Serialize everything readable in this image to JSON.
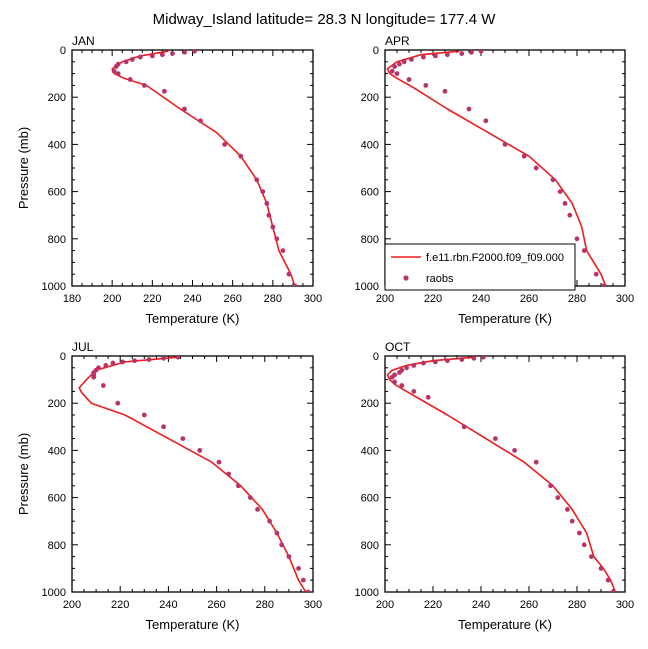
{
  "figure": {
    "title": "Midway_Island  latitude= 28.3 N longitude= 177.4 W"
  },
  "legend": {
    "model_label": "f.e11.rbn.F2000.f09_f09.000",
    "obs_label": "raobs"
  },
  "colors": {
    "model_line": "#ee1c1c",
    "obs_marker": "#b8336a",
    "axis": "#000000"
  },
  "chart_data": [
    {
      "type": "line",
      "panel": "JAN",
      "title": "JAN",
      "xlabel": "Temperature (K)",
      "ylabel": "Pressure (mb)",
      "xlim": [
        180,
        300
      ],
      "ylim": [
        1000,
        0
      ],
      "xticks": [
        180,
        200,
        220,
        240,
        260,
        280,
        300
      ],
      "yticks": [
        0,
        200,
        400,
        600,
        800,
        1000
      ],
      "legend_position": "none",
      "series": [
        {
          "name": "f.e11.rbn.F2000.f09_f09.000",
          "kind": "line",
          "x": [
            228,
            214,
            205,
            200,
            201,
            206,
            217,
            234,
            252,
            264,
            272,
            277,
            280,
            283,
            286,
            289,
            291
          ],
          "y": [
            5,
            25,
            50,
            80,
            100,
            120,
            150,
            250,
            350,
            450,
            550,
            650,
            750,
            850,
            900,
            950,
            1000
          ]
        },
        {
          "name": "raobs",
          "kind": "markers",
          "x": [
            241,
            236,
            230,
            225,
            220,
            214,
            210,
            207,
            203,
            202,
            201,
            203,
            209,
            216,
            226,
            236,
            244,
            256,
            264,
            272,
            275,
            277,
            278,
            280,
            282,
            285,
            288,
            291
          ],
          "y": [
            5,
            10,
            15,
            20,
            25,
            30,
            40,
            50,
            60,
            70,
            90,
            100,
            125,
            150,
            175,
            250,
            300,
            400,
            450,
            550,
            600,
            650,
            700,
            750,
            800,
            850,
            950,
            1000
          ]
        }
      ]
    },
    {
      "type": "line",
      "panel": "APR",
      "title": "APR",
      "xlabel": "Temperature (K)",
      "ylabel": "",
      "xlim": [
        200,
        300
      ],
      "ylim": [
        1000,
        0
      ],
      "xticks": [
        200,
        220,
        240,
        260,
        280,
        300
      ],
      "yticks": [
        0,
        200,
        400,
        600,
        800,
        1000
      ],
      "legend_position": "bottom-right",
      "series": [
        {
          "name": "f.e11.rbn.F2000.f09_f09.000",
          "kind": "line",
          "x": [
            231,
            215,
            205,
            201,
            202,
            205,
            212,
            226,
            243,
            260,
            271,
            278,
            282,
            284,
            287,
            290,
            292
          ],
          "y": [
            5,
            20,
            50,
            80,
            100,
            120,
            160,
            250,
            350,
            450,
            550,
            650,
            750,
            850,
            900,
            950,
            1000
          ]
        },
        {
          "name": "raobs",
          "kind": "markers",
          "x": [
            240,
            236,
            232,
            226,
            221,
            216,
            211,
            208,
            206,
            204,
            203,
            205,
            210,
            217,
            225,
            235,
            242,
            250,
            258,
            263,
            270,
            273,
            275,
            277,
            280,
            283,
            288,
            291
          ],
          "y": [
            5,
            10,
            15,
            20,
            25,
            30,
            40,
            50,
            60,
            70,
            90,
            100,
            125,
            150,
            175,
            250,
            300,
            400,
            450,
            500,
            550,
            600,
            650,
            700,
            800,
            850,
            950,
            1000
          ]
        }
      ]
    },
    {
      "type": "line",
      "panel": "JUL",
      "title": "JUL",
      "xlabel": "Temperature (K)",
      "ylabel": "Pressure (mb)",
      "xlim": [
        200,
        300
      ],
      "ylim": [
        1000,
        0
      ],
      "xticks": [
        200,
        220,
        240,
        260,
        280,
        300
      ],
      "yticks": [
        0,
        200,
        400,
        600,
        800,
        1000
      ],
      "legend_position": "none",
      "series": [
        {
          "name": "f.e11.rbn.F2000.f09_f09.000",
          "kind": "line",
          "x": [
            244,
            222,
            210,
            206,
            203,
            204,
            208,
            222,
            240,
            258,
            270,
            279,
            285,
            290,
            294,
            297
          ],
          "y": [
            5,
            25,
            60,
            100,
            135,
            155,
            200,
            250,
            350,
            450,
            550,
            650,
            750,
            850,
            950,
            1000
          ]
        },
        {
          "name": "raobs",
          "kind": "markers",
          "x": [
            244,
            238,
            232,
            226,
            221,
            217,
            214,
            211,
            210,
            209,
            209,
            209,
            213,
            219,
            230,
            238,
            246,
            253,
            261,
            265,
            269,
            274,
            277,
            282,
            285,
            287,
            290,
            294,
            296,
            298
          ],
          "y": [
            5,
            10,
            15,
            20,
            25,
            30,
            40,
            50,
            60,
            70,
            80,
            90,
            125,
            200,
            250,
            300,
            350,
            400,
            450,
            500,
            550,
            600,
            650,
            700,
            750,
            800,
            850,
            900,
            950,
            1000
          ]
        }
      ]
    },
    {
      "type": "line",
      "panel": "OCT",
      "title": "OCT",
      "xlabel": "Temperature (K)",
      "ylabel": "",
      "xlim": [
        200,
        300
      ],
      "ylim": [
        1000,
        0
      ],
      "xticks": [
        200,
        220,
        240,
        260,
        280,
        300
      ],
      "yticks": [
        0,
        200,
        400,
        600,
        800,
        1000
      ],
      "legend_position": "none",
      "series": [
        {
          "name": "f.e11.rbn.F2000.f09_f09.000",
          "kind": "line",
          "x": [
            237,
            220,
            209,
            203,
            201,
            202,
            204,
            209,
            226,
            242,
            258,
            270,
            278,
            284,
            287,
            291,
            294,
            296
          ],
          "y": [
            5,
            20,
            40,
            60,
            80,
            100,
            120,
            150,
            250,
            350,
            450,
            550,
            650,
            750,
            850,
            900,
            950,
            1000
          ]
        },
        {
          "name": "raobs",
          "kind": "markers",
          "x": [
            241,
            237,
            232,
            226,
            221,
            216,
            212,
            209,
            207,
            206,
            204,
            203,
            204,
            207,
            212,
            218,
            233,
            246,
            254,
            263,
            269,
            272,
            276,
            278,
            281,
            283,
            286,
            290,
            293,
            295
          ],
          "y": [
            5,
            10,
            15,
            20,
            25,
            30,
            40,
            50,
            60,
            70,
            80,
            90,
            110,
            125,
            150,
            175,
            300,
            350,
            400,
            450,
            550,
            600,
            650,
            700,
            750,
            800,
            850,
            900,
            950,
            1000
          ]
        }
      ]
    }
  ]
}
